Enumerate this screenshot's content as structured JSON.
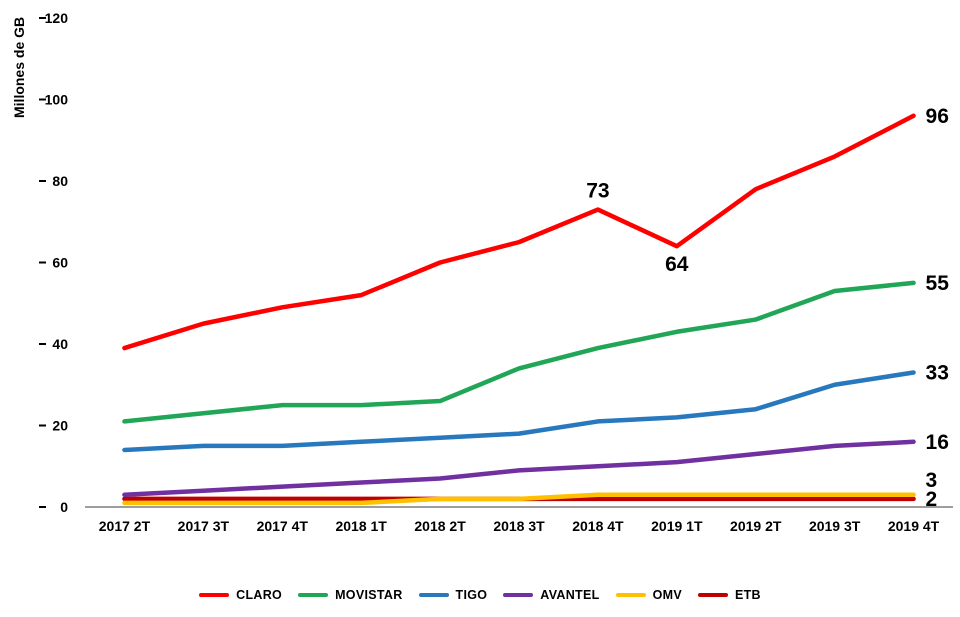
{
  "chart_data": {
    "type": "line",
    "title": "",
    "xlabel": "",
    "ylabel": "Millones de GB",
    "ylim": [
      0,
      120
    ],
    "yticks": [
      0,
      20,
      40,
      60,
      80,
      100,
      120
    ],
    "grid": false,
    "legend_position": "bottom",
    "axis_line_color": "#9E9E9E",
    "tick_color": "#000000",
    "categories": [
      "2017 2T",
      "2017 3T",
      "2017 4T",
      "2018 1T",
      "2018 2T",
      "2018 3T",
      "2018 4T",
      "2019 1T",
      "2019 2T",
      "2019 3T",
      "2019 4T"
    ],
    "series": [
      {
        "name": "CLARO",
        "color": "#FF0000",
        "values": [
          39,
          45,
          49,
          52,
          60,
          65,
          73,
          64,
          78,
          86,
          96
        ],
        "point_labels": [
          {
            "index": 6,
            "text": "73",
            "position": "above"
          },
          {
            "index": 7,
            "text": "64",
            "position": "below"
          }
        ],
        "end_label": "96"
      },
      {
        "name": "MOVISTAR",
        "color": "#21A657",
        "values": [
          21,
          23,
          25,
          25,
          26,
          34,
          39,
          43,
          46,
          53,
          55
        ],
        "point_labels": [],
        "end_label": "55"
      },
      {
        "name": "TIGO",
        "color": "#2878BE",
        "values": [
          14,
          15,
          15,
          16,
          17,
          18,
          21,
          22,
          24,
          30,
          33
        ],
        "point_labels": [],
        "end_label": "33"
      },
      {
        "name": "AVANTEL",
        "color": "#7030A0",
        "values": [
          3,
          4,
          5,
          6,
          7,
          9,
          10,
          11,
          13,
          15,
          16
        ],
        "point_labels": [],
        "end_label": "16"
      },
      {
        "name": "OMV",
        "color": "#FFC000",
        "values": [
          1,
          1,
          1,
          1,
          2,
          2,
          3,
          3,
          3,
          3,
          3
        ],
        "point_labels": [],
        "end_label": "3"
      },
      {
        "name": "ETB",
        "color": "#C00000",
        "values": [
          2,
          2,
          2,
          2,
          2,
          2,
          2,
          2,
          2,
          2,
          2
        ],
        "point_labels": [],
        "end_label": "2"
      }
    ]
  }
}
